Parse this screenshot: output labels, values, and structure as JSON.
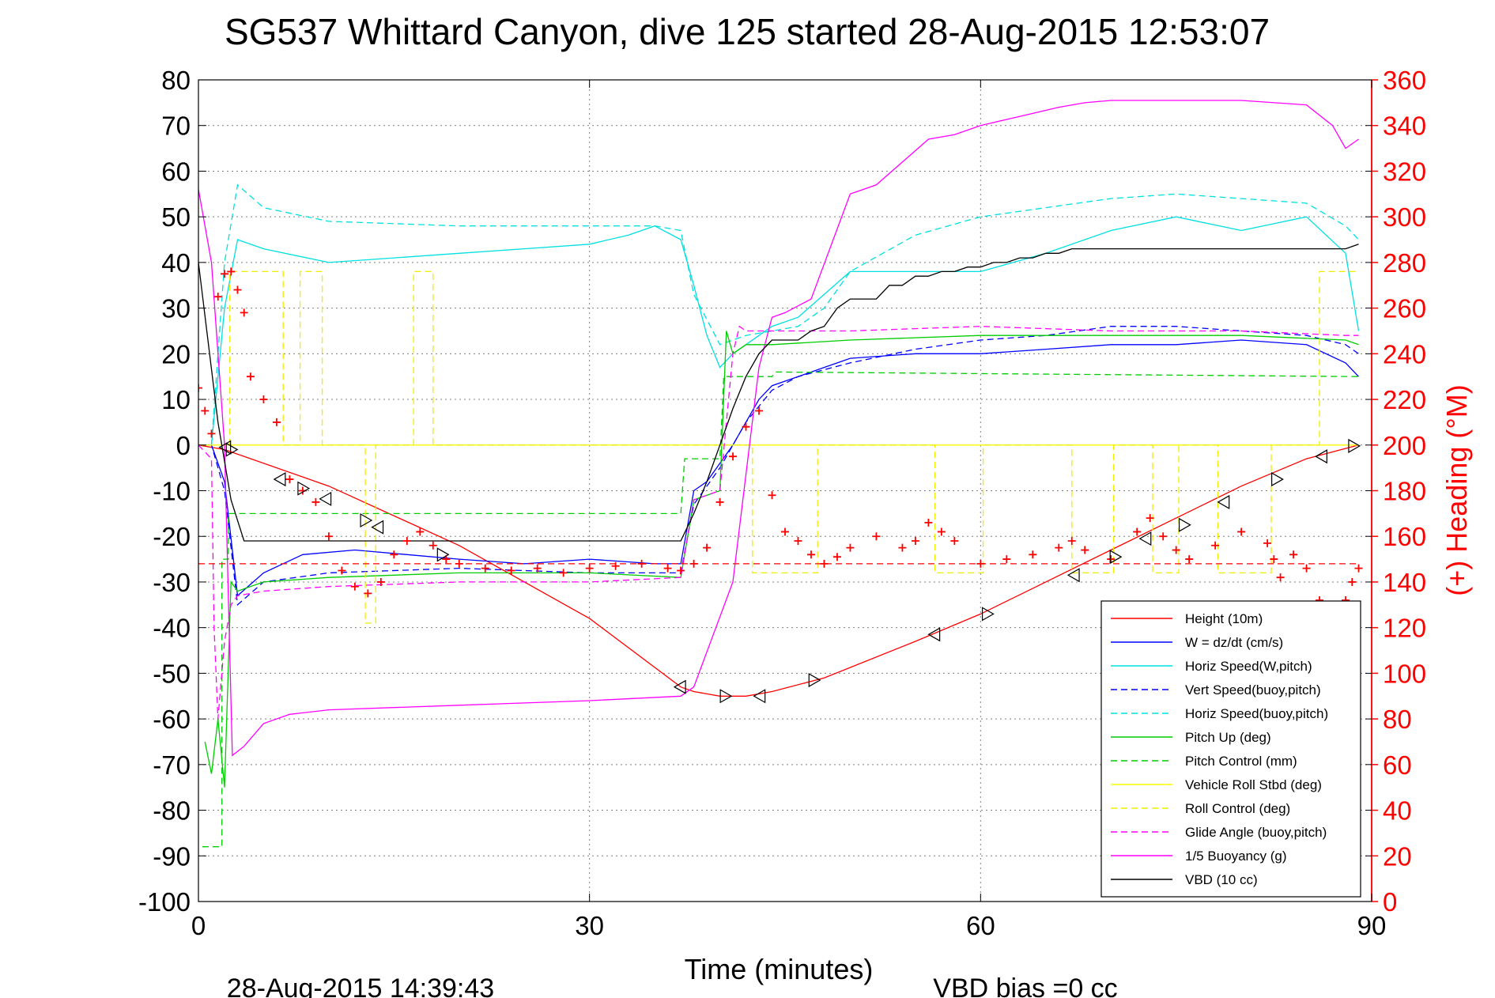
{
  "chart_data": {
    "type": "line",
    "title": "SG537 Whittard Canyon, dive 125 started 28-Aug-2015 12:53:07",
    "xlabel": "Time (minutes)",
    "ylabel": "",
    "ylabel_right": "(+) Heading (°M)",
    "footer_left": "28-Aug-2015 14:39:43",
    "footer_right": "VBD bias =0 cc",
    "xlim": [
      0,
      90
    ],
    "ylim": [
      -100,
      80
    ],
    "ylim_right": [
      0,
      360
    ],
    "xticks": [
      0,
      30,
      60,
      90
    ],
    "yticks": [
      80,
      70,
      60,
      50,
      40,
      30,
      20,
      10,
      0,
      -10,
      -20,
      -30,
      -40,
      -50,
      -60,
      -70,
      -80,
      -90,
      -100
    ],
    "yticks_right": [
      360,
      340,
      320,
      300,
      280,
      260,
      240,
      220,
      200,
      180,
      160,
      140,
      120,
      100,
      80,
      60,
      40,
      20,
      0
    ],
    "grid": true,
    "legend_position": "bottom-right",
    "colors": {
      "axis": "#000000",
      "right_axis": "#ff0000",
      "grid": "#808080"
    },
    "series": [
      {
        "name": "Height (10m)",
        "color": "#ff0000",
        "style": "solid",
        "x": [
          0,
          2,
          10,
          20,
          30,
          37,
          38,
          40,
          42,
          44,
          48,
          55,
          60,
          65,
          70,
          75,
          80,
          85,
          89
        ],
        "y": [
          0,
          -1,
          -9,
          -22,
          -38,
          -53,
          -54,
          -55,
          -55,
          -54,
          -51,
          -43,
          -37,
          -30,
          -23,
          -16,
          -9,
          -3,
          0
        ]
      },
      {
        "name": "W = dz/dt (cm/s)",
        "color": "#0000ff",
        "style": "solid",
        "x": [
          0,
          1,
          2,
          3,
          5,
          8,
          12,
          16,
          20,
          25,
          30,
          35,
          37,
          38,
          39,
          40,
          41,
          42,
          43,
          44,
          46,
          48,
          50,
          55,
          60,
          65,
          70,
          75,
          80,
          85,
          88,
          89
        ],
        "y": [
          0,
          0,
          -8,
          -33,
          -28,
          -24,
          -23,
          -24,
          -25,
          -26,
          -25,
          -26,
          -26,
          -10,
          -8,
          -4,
          0,
          5,
          10,
          13,
          15,
          17,
          19,
          20,
          20,
          21,
          22,
          22,
          23,
          22,
          18,
          15
        ]
      },
      {
        "name": "Horiz Speed(W,pitch)",
        "color": "#00e0e0",
        "style": "solid",
        "x": [
          1,
          2,
          3,
          5,
          10,
          15,
          20,
          25,
          30,
          33,
          35,
          37,
          38,
          39,
          40,
          41,
          42,
          43,
          44,
          46,
          48,
          50,
          55,
          60,
          65,
          70,
          75,
          80,
          85,
          88,
          89
        ],
        "y": [
          0,
          30,
          45,
          43,
          40,
          41,
          42,
          43,
          44,
          46,
          48,
          45,
          35,
          24,
          17,
          20,
          22,
          24,
          26,
          28,
          33,
          38,
          38,
          38,
          42,
          47,
          50,
          47,
          50,
          42,
          25
        ]
      },
      {
        "name": "Vert Speed(buoy,pitch)",
        "color": "#0000ff",
        "style": "dashed",
        "x": [
          0,
          1,
          2,
          3,
          5,
          10,
          20,
          30,
          37,
          38,
          40,
          42,
          44,
          46,
          50,
          55,
          60,
          65,
          70,
          75,
          80,
          85,
          88,
          89
        ],
        "y": [
          0,
          0,
          -10,
          -35,
          -30,
          -28,
          -27,
          -28,
          -28,
          -13,
          -5,
          5,
          12,
          15,
          18,
          21,
          23,
          24,
          26,
          26,
          25,
          24,
          22,
          20
        ]
      },
      {
        "name": "Horiz Speed(buoy,pitch)",
        "color": "#00e0e0",
        "style": "dashed",
        "x": [
          1,
          2,
          3,
          5,
          10,
          20,
          30,
          35,
          37,
          38,
          40,
          42,
          44,
          46,
          48,
          50,
          55,
          60,
          65,
          70,
          75,
          80,
          85,
          88,
          89
        ],
        "y": [
          0,
          40,
          57,
          52,
          49,
          48,
          48,
          48,
          47,
          33,
          22,
          24,
          25,
          26,
          30,
          38,
          46,
          50,
          52,
          54,
          55,
          54,
          53,
          48,
          45
        ]
      },
      {
        "name": "Pitch Up (deg)",
        "color": "#00cc00",
        "style": "solid",
        "x": [
          0.5,
          1,
          1.5,
          2,
          2.5,
          3,
          5,
          10,
          20,
          30,
          37,
          38,
          40,
          40.5,
          41,
          42,
          44,
          50,
          60,
          70,
          80,
          88,
          89
        ],
        "y": [
          -65,
          -72,
          -60,
          -75,
          -30,
          -32,
          -30,
          -29,
          -28,
          -28,
          -29,
          -12,
          -10,
          25,
          20,
          22,
          22,
          23,
          24,
          24,
          24,
          23,
          22
        ]
      },
      {
        "name": "Pitch Control (mm)",
        "color": "#00cc00",
        "style": "dashed",
        "x": [
          0.3,
          1.8,
          1.8,
          2.3,
          2.3,
          20,
          37,
          37.3,
          40,
          40.3,
          44,
          44.3,
          89
        ],
        "y": [
          -88,
          -88,
          -25,
          -25,
          -15,
          -15,
          -15,
          -3,
          -3,
          15,
          15,
          16,
          15
        ]
      },
      {
        "name": "Vehicle Roll Stbd (deg)",
        "color": "#ffff00",
        "style": "solid",
        "x": [
          0,
          2.5,
          2.5,
          89
        ],
        "y": [
          0,
          0,
          0,
          0
        ]
      },
      {
        "name": "Roll Control (deg)",
        "color": "#eeee00",
        "style": "dashed",
        "x": [
          2.4,
          2.4,
          6.5,
          6.5,
          7.8,
          7.8,
          9.5,
          9.5,
          12.8,
          12.8,
          13.6,
          13.6,
          16.5,
          16.5,
          18.0,
          18.0,
          42.5,
          42.5,
          47.5,
          47.5,
          56.5,
          56.5,
          60.2,
          60.2,
          67.0,
          67.0,
          70.2,
          70.2,
          73.2,
          73.2,
          75.2,
          75.2,
          78.2,
          78.2,
          82.3,
          82.3,
          86.0,
          86.0,
          89
        ],
        "y": [
          0,
          38,
          38,
          0,
          0,
          38,
          38,
          0,
          0,
          -39,
          -39,
          0,
          0,
          38,
          38,
          0,
          0,
          -28,
          -28,
          0,
          0,
          -28,
          -28,
          0,
          0,
          -28,
          -28,
          0,
          0,
          -28,
          -28,
          0,
          0,
          -28,
          -28,
          0,
          0,
          38,
          38
        ]
      },
      {
        "name": "Glide Angle (buoy,pitch)",
        "color": "#ff00ff",
        "style": "dashed",
        "x": [
          0,
          1,
          1.2,
          1.5,
          2.0,
          2.5,
          3,
          5,
          10,
          20,
          30,
          37,
          38,
          40,
          41,
          41.5,
          42,
          50,
          60,
          70,
          80,
          88,
          89
        ],
        "y": [
          0,
          -3,
          -40,
          -60,
          -43,
          -35,
          -33,
          -32,
          -31,
          -30,
          -30,
          -29,
          -12,
          -10,
          20,
          26,
          25,
          25,
          26,
          25,
          25,
          24,
          24
        ]
      },
      {
        "name": "1/5 Buoyancy (g)",
        "color": "#ff00ff",
        "style": "solid",
        "x": [
          0,
          1,
          2,
          2.6,
          3.5,
          5,
          7,
          10,
          20,
          30,
          37,
          38,
          41,
          43,
          44,
          45,
          47,
          50,
          52,
          54,
          56,
          58,
          60,
          63,
          66,
          68,
          70,
          75,
          80,
          85,
          87,
          88,
          89
        ],
        "y": [
          56,
          40,
          0,
          -68,
          -66,
          -61,
          -59,
          -58,
          -57,
          -56,
          -55,
          -53,
          -30,
          17,
          28,
          29,
          32,
          55,
          57,
          62,
          67,
          68,
          70,
          72,
          74,
          75,
          75.5,
          75.5,
          75.5,
          74.5,
          70,
          65,
          67
        ]
      },
      {
        "name": "VBD (10 cc)",
        "color": "#000000",
        "style": "solid",
        "x": [
          0,
          1.5,
          2.5,
          3.5,
          10,
          20,
          30,
          37,
          38,
          39,
          40,
          41,
          42,
          43,
          44,
          45,
          46,
          47,
          48,
          49,
          50,
          51,
          52,
          53,
          54,
          55,
          56,
          57,
          58,
          59,
          60,
          61,
          62,
          63,
          64,
          65,
          66,
          67,
          68,
          70,
          80,
          88,
          89
        ],
        "y": [
          40,
          5,
          -12,
          -21,
          -21,
          -21,
          -21,
          -21,
          -15,
          -8,
          0,
          8,
          15,
          20,
          23,
          23,
          23,
          25,
          26,
          30,
          32,
          32,
          32,
          35,
          35,
          37,
          37,
          38,
          38,
          39,
          39,
          40,
          40,
          41,
          41,
          42,
          42,
          43,
          43,
          43,
          43,
          43,
          44
        ]
      },
      {
        "name": "Heading",
        "color": "#ff0000",
        "style": "cross",
        "axis": "right",
        "x": [
          0,
          0.5,
          1,
          1.5,
          2,
          2.5,
          3,
          3.5,
          4,
          5,
          6,
          7,
          8,
          9,
          10,
          11,
          12,
          13,
          14,
          15,
          16,
          17,
          18,
          19,
          20,
          22,
          24,
          26,
          28,
          30,
          32,
          34,
          36,
          37,
          38,
          39,
          40,
          41,
          42,
          43,
          44,
          45,
          46,
          47,
          48,
          49,
          50,
          52,
          54,
          55,
          56,
          57,
          58,
          60,
          62,
          64,
          66,
          67,
          68,
          70,
          72,
          73,
          74,
          75,
          76,
          78,
          80,
          82,
          82.5,
          83,
          84,
          85,
          86,
          87,
          88,
          88.5,
          89
        ],
        "y": [
          225,
          215,
          205,
          265,
          275,
          276,
          268,
          258,
          230,
          220,
          210,
          185,
          180,
          175,
          160,
          145,
          138,
          135,
          140,
          152,
          158,
          162,
          156,
          150,
          148,
          146,
          145,
          146,
          144,
          146,
          147,
          148,
          146,
          145,
          148,
          155,
          175,
          195,
          208,
          215,
          178,
          162,
          158,
          152,
          148,
          151,
          155,
          160,
          155,
          158,
          166,
          162,
          158,
          148,
          150,
          152,
          155,
          158,
          154,
          150,
          162,
          168,
          160,
          154,
          150,
          156,
          162,
          157,
          150,
          142,
          152,
          146,
          132,
          128,
          132,
          140,
          146
        ]
      },
      {
        "name": "Heading setpoint",
        "color": "#ff0000",
        "style": "dashed",
        "axis": "right",
        "x": [
          0,
          89
        ],
        "y": [
          148,
          148
        ]
      },
      {
        "name": "Height markers",
        "color": "#000000",
        "style": "triangle",
        "x": [
          2.1,
          2.5,
          6.3,
          8,
          9.8,
          12.8,
          13.8,
          18.7,
          37.0,
          40.4,
          43.1,
          47.2,
          56.5,
          60.5,
          67.2,
          70.3,
          72.7,
          75.6,
          78.7,
          82.7,
          86.2,
          88.6
        ],
        "y": [
          -0.5,
          -1,
          -7.5,
          -9.5,
          -11.8,
          -16.5,
          -18,
          -24,
          -53,
          -55,
          -55,
          -51.5,
          -41.5,
          -37,
          -28.5,
          -24.5,
          -20.5,
          -17.5,
          -12.5,
          -7.5,
          -2.5,
          -0.2
        ]
      }
    ]
  }
}
